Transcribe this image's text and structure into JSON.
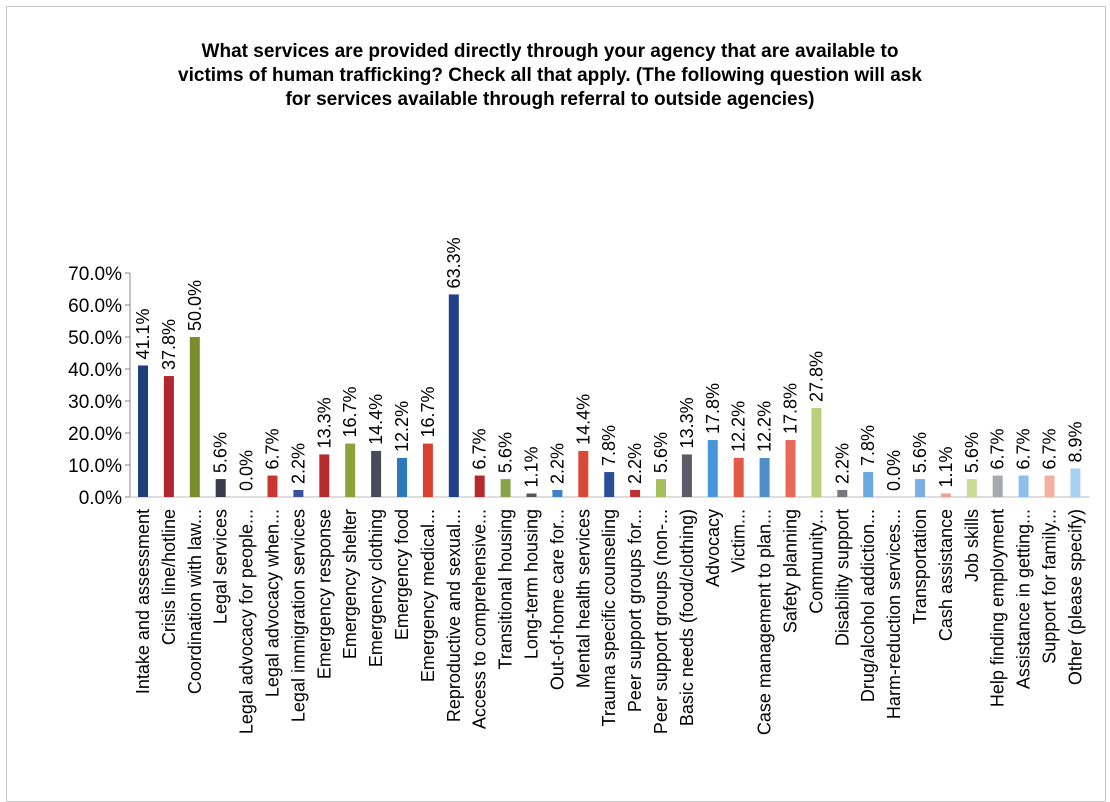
{
  "chart_data": {
    "type": "bar",
    "title_lines": [
      "What services are provided directly through your agency that are available to",
      "victims of human trafficking? Check all that apply.   (The following question will ask",
      "for services available through referral to outside agencies)"
    ],
    "ylim": [
      0,
      70
    ],
    "yticks": [
      "0.0%",
      "10.0%",
      "20.0%",
      "30.0%",
      "40.0%",
      "50.0%",
      "60.0%",
      "70.0%"
    ],
    "grid": false,
    "legend": "none",
    "categories": [
      "Intake and assessment",
      "Crisis line/hotline",
      "Coordination with law...",
      "Legal services",
      "Legal advocacy for people...",
      "Legal advocacy when...",
      "Legal immigration services",
      "Emergency response",
      "Emergency shelter",
      "Emergency clothing",
      "Emergency food",
      "Emergency medical...",
      "Reproductive and sexual...",
      "Access to comprehensive...",
      "Transitional housing",
      "Long-term housing",
      "Out-of-home care for...",
      "Mental health services",
      "Trauma specific counseling",
      "Peer support groups for...",
      "Peer support groups (non-...",
      "Basic needs (food/clothing)",
      "Advocacy",
      "Victim...",
      "Case management to plan...",
      "Safety planning",
      "Community...",
      "Disability support",
      "Drug/alcohol addiction...",
      "Harm-reduction services...",
      "Transportation",
      "Cash assistance",
      "Job skills",
      "Help finding employment",
      "Assistance in getting...",
      "Support for family...",
      "Other (please specify)"
    ],
    "values": [
      41.1,
      37.8,
      50.0,
      5.6,
      0.0,
      6.7,
      2.2,
      13.3,
      16.7,
      14.4,
      12.2,
      16.7,
      63.3,
      6.7,
      5.6,
      1.1,
      2.2,
      14.4,
      7.8,
      2.2,
      5.6,
      13.3,
      17.8,
      12.2,
      12.2,
      17.8,
      27.8,
      2.2,
      7.8,
      0.0,
      5.6,
      1.1,
      5.6,
      6.7,
      6.7,
      6.7,
      8.9
    ],
    "data_labels": [
      "41.1%",
      "37.8%",
      "50.0%",
      "5.6%",
      "0.0%",
      "6.7%",
      "2.2%",
      "13.3%",
      "16.7%",
      "14.4%",
      "12.2%",
      "16.7%",
      "63.3%",
      "6.7%",
      "5.6%",
      "1.1%",
      "2.2%",
      "14.4%",
      "7.8%",
      "2.2%",
      "5.6%",
      "13.3%",
      "17.8%",
      "12.2%",
      "12.2%",
      "17.8%",
      "27.8%",
      "2.2%",
      "7.8%",
      "0.0%",
      "5.6%",
      "1.1%",
      "5.6%",
      "6.7%",
      "6.7%",
      "6.7%",
      "8.9%"
    ],
    "bar_colors": [
      "#1f3f7a",
      "#b0272e",
      "#7a8c2c",
      "#3a3a4a",
      "#2e6fb0",
      "#c9362f",
      "#3a4fa0",
      "#b52c30",
      "#8aa33a",
      "#4a4a5a",
      "#2f78c0",
      "#d9412f",
      "#1f3f8a",
      "#b52a2a",
      "#8aa34a",
      "#55555f",
      "#3b84c8",
      "#d84a36",
      "#2a4f9a",
      "#c03030",
      "#a6be5c",
      "#5a5a66",
      "#4a94d8",
      "#e35a44",
      "#4f8ec8",
      "#e86a5a",
      "#b8d07a",
      "#77777f",
      "#6aa8e0",
      "#ee8a7a",
      "#7ab0e4",
      "#f0a090",
      "#c8dc98",
      "#a8a8b0",
      "#8cc0ec",
      "#f2b0a0",
      "#a8d0f2"
    ]
  }
}
